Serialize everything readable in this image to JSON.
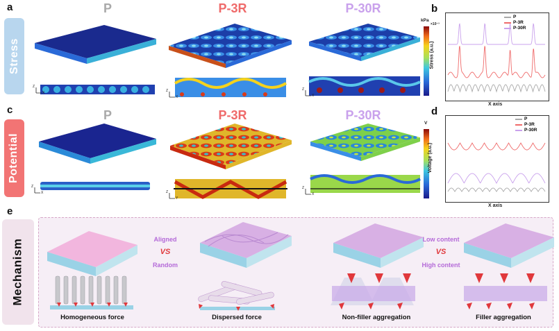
{
  "panels": {
    "a": "a",
    "b": "b",
    "c": "c",
    "d": "d",
    "e": "e"
  },
  "rows": {
    "stress": "Stress",
    "potential": "Potential",
    "mechanism": "Mechanism"
  },
  "columns": {
    "p": "P",
    "p3r": "P-3R",
    "p30r": "P-30R"
  },
  "colors": {
    "p": "#a9a9a9",
    "p3r": "#ef6a6a",
    "p30r": "#c9a1ec",
    "stress_tab": "#b8d6ee",
    "potential_tab": "#f27474",
    "mechanism_tab": "#f1e3ec",
    "mech_bg": "#f6eef6"
  },
  "colorbars": {
    "stress": {
      "unit": "kPa",
      "exponent": "×10⁻³"
    },
    "potential": {
      "unit": "V"
    }
  },
  "chart_b": {
    "ylabel": "Stress (a.u.)",
    "xlabel": "X axis",
    "legend": [
      "P",
      "P-3R",
      "P-30R"
    ]
  },
  "chart_d": {
    "ylabel": "Voltage (a.u.)",
    "xlabel": "X axis",
    "legend": [
      "P",
      "P-3R",
      "P-30R"
    ]
  },
  "axes": {
    "z": "Z",
    "x": "X",
    "y": "Y"
  },
  "mechanism": {
    "aligned": "Aligned",
    "vs1": "VS",
    "random": "Random",
    "low": "Low content",
    "vs2": "VS",
    "high": "High content",
    "labels": [
      "Homogeneous force",
      "Dispersed force",
      "Non-filler aggregation",
      "Filler aggregation"
    ]
  }
}
